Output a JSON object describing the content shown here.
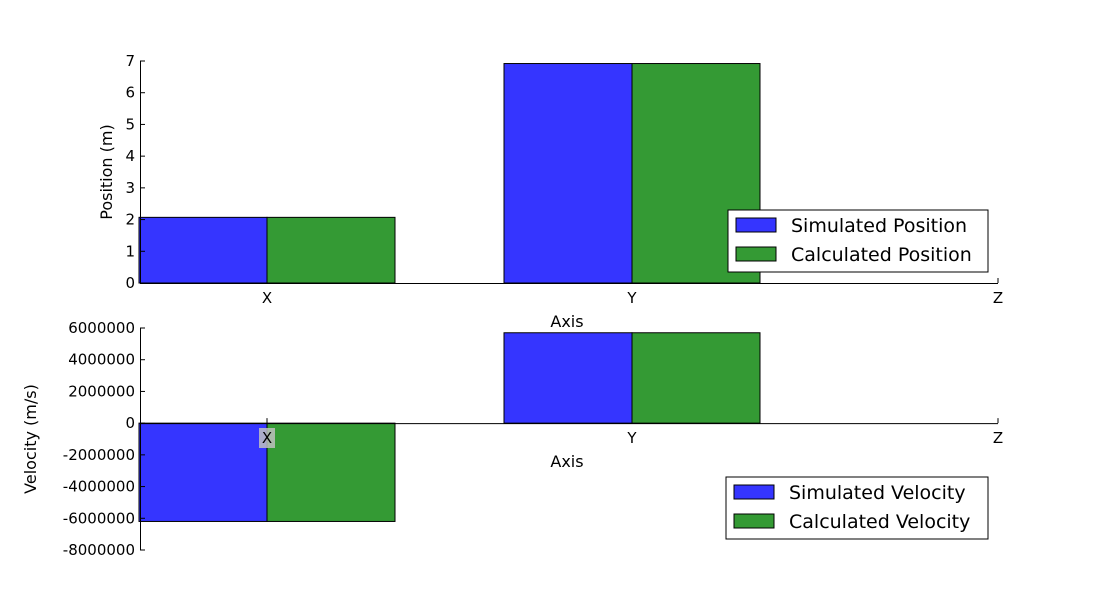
{
  "chart_data": [
    {
      "type": "bar",
      "categories": [
        "X",
        "Y",
        "Z"
      ],
      "series": [
        {
          "name": "Simulated Position",
          "values": [
            2.07,
            6.92,
            0.0
          ],
          "color": "#3535ff"
        },
        {
          "name": "Calculated Position",
          "values": [
            2.07,
            6.92,
            0.0
          ],
          "color": "#349a34"
        }
      ],
      "xlabel": "Axis",
      "ylabel": "Position (m)",
      "ylim": [
        0,
        7
      ],
      "yticks": [
        0,
        1,
        2,
        3,
        4,
        5,
        6,
        7
      ],
      "legend_position": "lower-right",
      "grid": false
    },
    {
      "type": "bar",
      "categories": [
        "X",
        "Y",
        "Z"
      ],
      "series": [
        {
          "name": "Simulated Velocity",
          "values": [
            -6200000,
            5700000,
            0
          ],
          "color": "#3535ff"
        },
        {
          "name": "Calculated Velocity",
          "values": [
            -6200000,
            5700000,
            0
          ],
          "color": "#349a34"
        }
      ],
      "xlabel": "Axis",
      "ylabel": "Velocity (m/s)",
      "ylim": [
        -8000000,
        6000000
      ],
      "yticks": [
        -8000000,
        -6000000,
        -4000000,
        -2000000,
        0,
        2000000,
        4000000,
        6000000
      ],
      "legend_position": "lower-right",
      "grid": false
    }
  ]
}
